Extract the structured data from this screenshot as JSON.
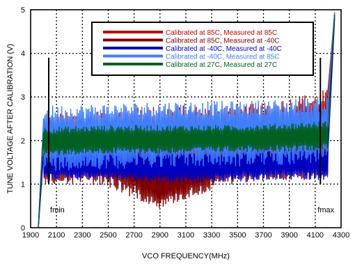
{
  "chart_data": {
    "type": "line",
    "title": "",
    "xlabel": "VCO FREQUENCY(MHz)",
    "ylabel": "TUNE VOLTAGE AFTER CALIBRATION (V)",
    "xlim": [
      1900,
      4300
    ],
    "ylim": [
      0,
      5
    ],
    "xticks": [
      1900,
      2100,
      2300,
      2500,
      2700,
      2900,
      3100,
      3300,
      3500,
      3700,
      3900,
      4100,
      4300
    ],
    "yticks": [
      0,
      1,
      2,
      3,
      4,
      5
    ],
    "grid": true,
    "grid_style": "dotted",
    "legend_position": "top-right",
    "annotations": [
      {
        "text": "fmin",
        "x": 2040,
        "line_from": 1.0,
        "line_to": 3.9
      },
      {
        "text": "fmax",
        "x": 4140,
        "line_from": 1.0,
        "line_to": 3.9
      }
    ],
    "series": [
      {
        "name": "Calibrated at 85C, Measured at 85C",
        "color": "#c00000",
        "band": [
          {
            "x": 1960,
            "lo": 0.0,
            "hi": 0.0
          },
          {
            "x": 2000,
            "lo": 1.0,
            "hi": 2.6
          },
          {
            "x": 2200,
            "lo": 1.05,
            "hi": 2.65
          },
          {
            "x": 2500,
            "lo": 1.05,
            "hi": 2.7
          },
          {
            "x": 2900,
            "lo": 1.1,
            "hi": 2.8
          },
          {
            "x": 3300,
            "lo": 1.1,
            "hi": 2.8
          },
          {
            "x": 3700,
            "lo": 1.1,
            "hi": 2.85
          },
          {
            "x": 3900,
            "lo": 1.1,
            "hi": 3.0
          },
          {
            "x": 4100,
            "lo": 1.1,
            "hi": 3.1
          },
          {
            "x": 4200,
            "lo": 1.15,
            "hi": 3.2
          },
          {
            "x": 4250,
            "lo": 4.9,
            "hi": 4.9
          }
        ]
      },
      {
        "name": "Calibrated at 85C, Measured at -40C",
        "color": "#800000",
        "band": [
          {
            "x": 1960,
            "lo": 0.0,
            "hi": 0.0
          },
          {
            "x": 2000,
            "lo": 1.0,
            "hi": 2.5
          },
          {
            "x": 2300,
            "lo": 1.0,
            "hi": 2.55
          },
          {
            "x": 2500,
            "lo": 0.9,
            "hi": 2.6
          },
          {
            "x": 2900,
            "lo": 0.45,
            "hi": 1.4
          },
          {
            "x": 3000,
            "lo": 0.55,
            "hi": 1.6
          },
          {
            "x": 3300,
            "lo": 0.85,
            "hi": 2.0
          },
          {
            "x": 3500,
            "lo": 1.0,
            "hi": 2.5
          },
          {
            "x": 3900,
            "lo": 1.1,
            "hi": 2.7
          },
          {
            "x": 4200,
            "lo": 1.15,
            "hi": 2.8
          },
          {
            "x": 4250,
            "lo": 4.85,
            "hi": 4.85
          }
        ]
      },
      {
        "name": "Calibrated at -40C, Measured at -40C",
        "color": "#0000c0",
        "band": [
          {
            "x": 1960,
            "lo": 0.0,
            "hi": 0.0
          },
          {
            "x": 2000,
            "lo": 1.1,
            "hi": 1.75
          },
          {
            "x": 2500,
            "lo": 1.1,
            "hi": 1.8
          },
          {
            "x": 3000,
            "lo": 1.0,
            "hi": 1.8
          },
          {
            "x": 3500,
            "lo": 1.05,
            "hi": 1.8
          },
          {
            "x": 3900,
            "lo": 1.1,
            "hi": 1.85
          },
          {
            "x": 4200,
            "lo": 1.1,
            "hi": 1.9
          },
          {
            "x": 4250,
            "lo": 4.8,
            "hi": 4.8
          }
        ]
      },
      {
        "name": "Calibrated at -40C, Measured at 85C",
        "color": "#3f7fff",
        "band": [
          {
            "x": 1960,
            "lo": 0.0,
            "hi": 0.0
          },
          {
            "x": 2000,
            "lo": 1.3,
            "hi": 2.8
          },
          {
            "x": 2500,
            "lo": 1.35,
            "hi": 2.85
          },
          {
            "x": 3000,
            "lo": 1.4,
            "hi": 2.9
          },
          {
            "x": 3500,
            "lo": 1.4,
            "hi": 2.9
          },
          {
            "x": 3900,
            "lo": 1.45,
            "hi": 2.95
          },
          {
            "x": 4200,
            "lo": 1.5,
            "hi": 3.0
          },
          {
            "x": 4250,
            "lo": 4.95,
            "hi": 4.95
          }
        ]
      },
      {
        "name": "Calibrated at 27C, Measured at 27C",
        "color": "#006020",
        "band": [
          {
            "x": 1960,
            "lo": 0.0,
            "hi": 0.0
          },
          {
            "x": 2000,
            "lo": 1.65,
            "hi": 2.3
          },
          {
            "x": 2500,
            "lo": 1.7,
            "hi": 2.35
          },
          {
            "x": 3000,
            "lo": 1.7,
            "hi": 2.35
          },
          {
            "x": 3500,
            "lo": 1.75,
            "hi": 2.35
          },
          {
            "x": 3900,
            "lo": 1.75,
            "hi": 2.4
          },
          {
            "x": 4200,
            "lo": 1.8,
            "hi": 2.45
          },
          {
            "x": 4250,
            "lo": 4.9,
            "hi": 4.9
          }
        ]
      }
    ]
  }
}
